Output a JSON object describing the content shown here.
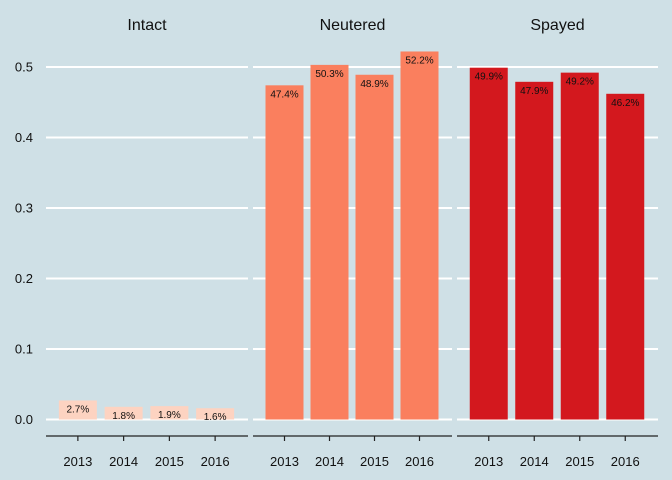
{
  "chart_data": {
    "type": "bar",
    "categories": [
      "2013",
      "2014",
      "2015",
      "2016"
    ],
    "ylim": [
      0,
      0.52
    ],
    "yticks": [
      0.0,
      0.1,
      0.2,
      0.3,
      0.4,
      0.5
    ],
    "ytick_labels": [
      "0.0",
      "0.1",
      "0.2",
      "0.3",
      "0.4",
      "0.5"
    ],
    "grid": true,
    "series": [
      {
        "name": "Intact",
        "color": "#fdd3c1",
        "values": [
          0.027,
          0.018,
          0.019,
          0.016
        ],
        "labels": [
          "2.7%",
          "1.8%",
          "1.9%",
          "1.6%"
        ]
      },
      {
        "name": "Neutered",
        "color": "#fa7f5e",
        "values": [
          0.474,
          0.503,
          0.489,
          0.522
        ],
        "labels": [
          "47.4%",
          "50.3%",
          "48.9%",
          "52.2%"
        ]
      },
      {
        "name": "Spayed",
        "color": "#d3181e",
        "values": [
          0.499,
          0.479,
          0.492,
          0.462
        ],
        "labels": [
          "49.9%",
          "47.9%",
          "49.2%",
          "46.2%"
        ]
      }
    ]
  }
}
